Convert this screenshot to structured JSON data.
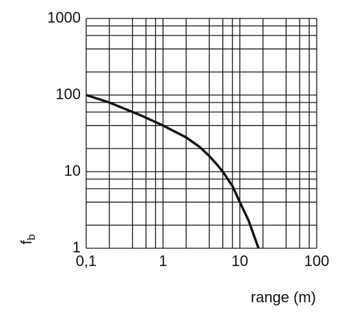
{
  "chart_data": {
    "type": "line",
    "xlabel": "range (m)",
    "ylabel": "f",
    "ylabel_sub": "b",
    "xscale": "log",
    "yscale": "log",
    "xlim": [
      0.1,
      100
    ],
    "ylim": [
      1,
      1000
    ],
    "xticks": [
      {
        "value": 0.1,
        "label": "0,1"
      },
      1,
      10,
      100
    ],
    "yticks": [
      1,
      10,
      100,
      1000
    ],
    "xgrid": [
      0.2,
      0.4,
      0.6,
      0.8,
      2,
      4,
      6,
      8,
      20,
      40,
      60,
      80
    ],
    "ygrid": [
      2,
      4,
      6,
      8,
      20,
      40,
      60,
      80,
      200,
      400,
      600,
      800
    ],
    "grid": true,
    "color": "#111111",
    "series": [
      {
        "x": [
          0.1,
          0.2,
          0.5,
          1,
          2,
          3,
          4,
          5,
          6,
          8,
          10,
          13,
          17.5
        ],
        "values": [
          100,
          80,
          55,
          40,
          28,
          21,
          16,
          12.5,
          10,
          6.5,
          4,
          2.3,
          1
        ]
      }
    ]
  }
}
